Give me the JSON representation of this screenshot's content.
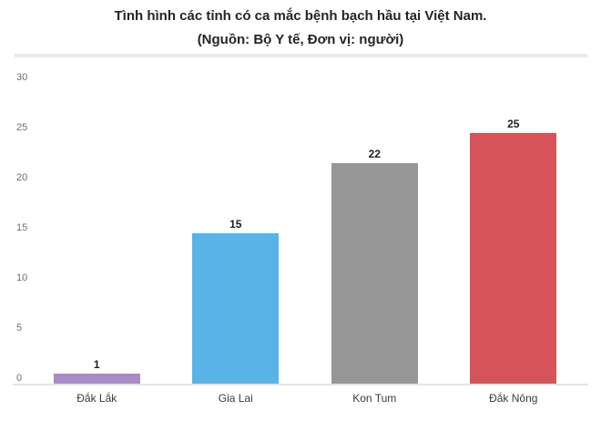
{
  "chart_data": {
    "type": "bar",
    "title": "Tình hình các tỉnh có ca mắc bệnh bạch hầu tại Việt Nam.",
    "subtitle": "(Nguồn: Bộ Y tế, Đơn vị: người)",
    "categories": [
      "Đắk Lắk",
      "Gia Lai",
      "Kon Tum",
      "Đắk Nông"
    ],
    "values": [
      1,
      15,
      22,
      25
    ],
    "bar_colors": [
      "#a98cc6",
      "#58b3e6",
      "#969696",
      "#d6535a"
    ],
    "xlabel": "",
    "ylabel": "",
    "ylim": [
      0,
      30
    ],
    "yticks": [
      0,
      5,
      10,
      15,
      20,
      25,
      30
    ],
    "grid": false,
    "legend": false
  },
  "colors": {
    "title_text": "#252525",
    "tick_text": "#6f6f6f",
    "category_text": "#3b3b3b",
    "value_text": "#1f1f1f",
    "separator": "#e9e9e9",
    "baseline": "#e4e4e4",
    "background": "#ffffff"
  }
}
